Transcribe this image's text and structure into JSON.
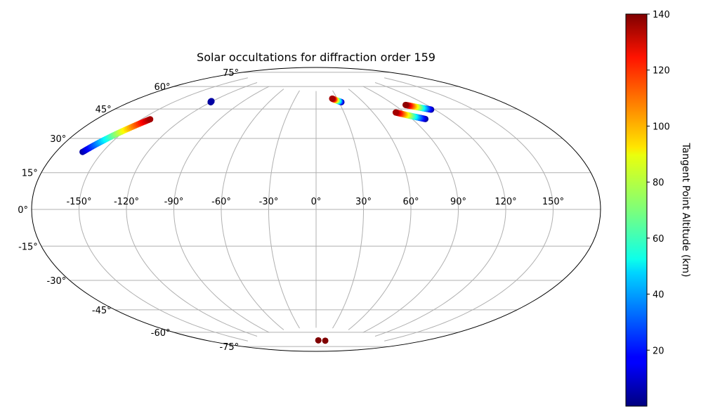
{
  "chart_data": {
    "type": "scatter",
    "projection": "aitoff",
    "title": "Solar occultations for diffraction order 159",
    "xlabel": "",
    "ylabel": "",
    "grid": true,
    "lon_ticks": [
      -150,
      -120,
      -90,
      -60,
      -30,
      0,
      30,
      60,
      90,
      120,
      150
    ],
    "lon_tick_labels": [
      "-150°",
      "-120°",
      "-90°",
      "-60°",
      "-30°",
      "0°",
      "30°",
      "60°",
      "90°",
      "120°",
      "150°"
    ],
    "lat_ticks": [
      75,
      60,
      45,
      30,
      15,
      0,
      -15,
      -30,
      -45,
      -60,
      -75
    ],
    "lat_tick_labels": [
      "75°",
      "60°",
      "45°",
      "30°",
      "15°",
      "0°",
      "-15°",
      "-30°",
      "-45°",
      "-60°",
      "-75°"
    ],
    "colorbar": {
      "label": "Tangent Point Altitude (km)",
      "colormap": "jet",
      "vmin": 0,
      "vmax": 140,
      "ticks": [
        20,
        40,
        60,
        80,
        100,
        120,
        140
      ],
      "tick_labels": [
        "20",
        "40",
        "60",
        "80",
        "100",
        "120",
        "140"
      ]
    },
    "series": [
      {
        "lon_start": -144,
        "lat_start": 46,
        "lon_end": -163,
        "lat_end": 26,
        "alt_start": 135,
        "alt_end": 5
      },
      {
        "lon_start": -121,
        "lat_start": 61,
        "lon_end": -120,
        "lat_end": 60.5,
        "alt_start": 5,
        "alt_end": 2
      },
      {
        "lon_start": 23,
        "lat_start": 70,
        "lon_end": 33,
        "lat_end": 67.5,
        "alt_start": 135,
        "alt_end": 3
      },
      {
        "lon_start": 82,
        "lat_start": 58,
        "lon_end": 101,
        "lat_end": 52,
        "alt_start": 135,
        "alt_end": 3
      },
      {
        "lon_start": 101,
        "lat_start": 61,
        "lon_end": 117,
        "lat_end": 56,
        "alt_start": 138,
        "alt_end": 5
      },
      {
        "lon_start": 8,
        "lat_start": -83,
        "lon_end": 8,
        "lat_end": -83,
        "alt_start": 140,
        "alt_end": 140
      },
      {
        "lon_start": 33,
        "lat_start": -83,
        "lon_end": 33,
        "lat_end": -83,
        "alt_start": 140,
        "alt_end": 140
      }
    ],
    "colors": {
      "grid": "#b0b0b0",
      "outline": "#000000"
    }
  }
}
